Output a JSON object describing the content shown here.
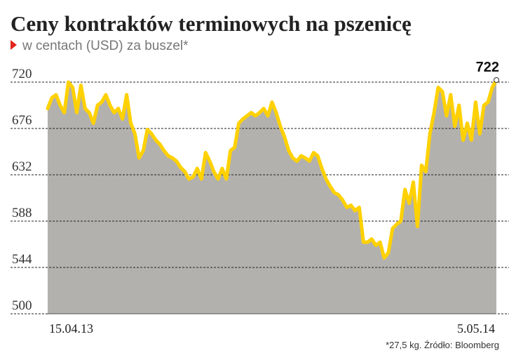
{
  "chart_data": {
    "type": "area",
    "title": "Ceny kontraktów terminowych na pszenicę",
    "subtitle": "w centach (USD) za buszel*",
    "source": "*27,5 kg. Źródło: Bloomberg",
    "categories": [
      "15.04.13",
      null,
      null,
      null,
      null,
      null,
      null,
      null,
      null,
      null,
      null,
      null,
      null,
      null,
      null,
      null,
      null,
      null,
      null,
      null,
      null,
      null,
      null,
      null,
      null,
      null,
      null,
      null,
      null,
      null,
      null,
      null,
      null,
      null,
      null,
      null,
      null,
      null,
      null,
      null,
      null,
      null,
      null,
      null,
      null,
      null,
      null,
      null,
      null,
      null,
      null,
      null,
      null,
      null,
      null,
      null,
      null,
      null,
      null,
      null,
      null,
      null,
      null,
      null,
      null,
      null,
      null,
      null,
      null,
      null,
      null,
      null,
      null,
      null,
      null,
      null,
      null,
      null,
      null,
      null,
      null,
      null,
      null,
      null,
      null,
      null,
      null,
      null,
      null,
      null,
      null,
      null,
      null,
      null,
      null,
      null,
      null,
      null,
      null,
      null,
      null,
      null,
      null,
      null,
      null,
      null,
      null,
      null,
      "5.05.14"
    ],
    "values": [
      695,
      705,
      708,
      698,
      691,
      720,
      715,
      691,
      717,
      695,
      691,
      681,
      698,
      701,
      708,
      698,
      691,
      695,
      685,
      708,
      681,
      671,
      648,
      655,
      675,
      671,
      665,
      661,
      655,
      650,
      648,
      645,
      639,
      635,
      628,
      630,
      638,
      628,
      653,
      645,
      635,
      628,
      638,
      628,
      655,
      658,
      681,
      685,
      688,
      691,
      688,
      691,
      695,
      688,
      701,
      691,
      678,
      668,
      655,
      648,
      645,
      650,
      648,
      645,
      653,
      650,
      638,
      628,
      621,
      615,
      613,
      608,
      601,
      603,
      598,
      601,
      568,
      568,
      571,
      565,
      568,
      553,
      558,
      581,
      585,
      588,
      618,
      605,
      625,
      583,
      641,
      635,
      671,
      691,
      715,
      711,
      688,
      708,
      678,
      698,
      665,
      681,
      665,
      701,
      671,
      698,
      701,
      715,
      722
    ],
    "line_color": "#ffd100",
    "area_color": "#b3b1ae",
    "ylim": [
      500,
      730
    ],
    "yticks": [
      500,
      544,
      588,
      632,
      676,
      720
    ],
    "grid": true
  }
}
